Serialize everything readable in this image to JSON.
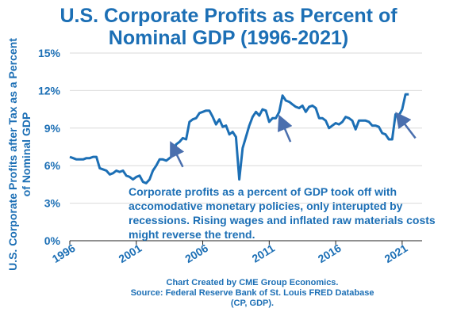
{
  "title_lines": [
    "U.S. Corporate Profits as Percent of",
    "Nominal GDP (1996-2021)"
  ],
  "ylabel_lines": [
    "U.S. Corporate Profits after Tax as a Percent",
    "of Nominal GDP"
  ],
  "annotation": "Corporate profits as a percent of GDP took off with accomodative monetary policies, only interupted by recessions.  Rising wages and inflated raw materials costs might reverse the trend.",
  "source_lines": [
    "Chart Created by CME Group Economics.",
    "Source:  Federal Reserve Bank of St. Louis FRED Database",
    "(CP, GDP)."
  ],
  "colors": {
    "line": "#1c6fb5",
    "text": "#1c6fb5",
    "arrow": "#4a6fae",
    "axis": "#222222"
  },
  "chart_data": {
    "type": "line",
    "title": "U.S. Corporate Profits as Percent of Nominal GDP (1996-2021)",
    "ylabel": "U.S. Corporate Profits after Tax as a Percent of Nominal GDP",
    "xlabel": "",
    "ylim": [
      0,
      15
    ],
    "xlim": [
      1996,
      2022.5
    ],
    "yticks": [
      0,
      3,
      6,
      9,
      12,
      15
    ],
    "ytick_labels": [
      "0%",
      "3%",
      "6%",
      "9%",
      "12%",
      "15%"
    ],
    "xticks": [
      1996,
      2001,
      2006,
      2011,
      2016,
      2021
    ],
    "xtick_labels": [
      "1996",
      "2001",
      "2006",
      "2011",
      "2016",
      "2021"
    ],
    "grid": "horizontal",
    "series": [
      {
        "values": [
          [
            1996.0,
            6.7
          ],
          [
            1996.25,
            6.6
          ],
          [
            1996.5,
            6.5
          ],
          [
            1996.75,
            6.5
          ],
          [
            1997.0,
            6.5
          ],
          [
            1997.25,
            6.6
          ],
          [
            1997.5,
            6.6
          ],
          [
            1997.75,
            6.7
          ],
          [
            1998.0,
            6.7
          ],
          [
            1998.25,
            5.8
          ],
          [
            1998.5,
            5.7
          ],
          [
            1998.75,
            5.6
          ],
          [
            1999.0,
            5.3
          ],
          [
            1999.25,
            5.4
          ],
          [
            1999.5,
            5.6
          ],
          [
            1999.75,
            5.5
          ],
          [
            2000.0,
            5.6
          ],
          [
            2000.25,
            5.2
          ],
          [
            2000.5,
            5.1
          ],
          [
            2000.75,
            4.9
          ],
          [
            2001.0,
            5.1
          ],
          [
            2001.25,
            5.2
          ],
          [
            2001.5,
            4.7
          ],
          [
            2001.75,
            4.6
          ],
          [
            2002.0,
            4.9
          ],
          [
            2002.25,
            5.6
          ],
          [
            2002.5,
            6.0
          ],
          [
            2002.75,
            6.5
          ],
          [
            2003.0,
            6.5
          ],
          [
            2003.25,
            6.4
          ],
          [
            2003.5,
            6.6
          ],
          [
            2003.75,
            6.8
          ],
          [
            2004.0,
            7.7
          ],
          [
            2004.25,
            7.9
          ],
          [
            2004.5,
            8.2
          ],
          [
            2004.75,
            8.1
          ],
          [
            2005.0,
            9.5
          ],
          [
            2005.25,
            9.7
          ],
          [
            2005.5,
            9.8
          ],
          [
            2005.75,
            10.2
          ],
          [
            2006.0,
            10.3
          ],
          [
            2006.25,
            10.4
          ],
          [
            2006.5,
            10.4
          ],
          [
            2006.75,
            9.9
          ],
          [
            2007.0,
            9.3
          ],
          [
            2007.25,
            9.7
          ],
          [
            2007.5,
            9.1
          ],
          [
            2007.75,
            9.2
          ],
          [
            2008.0,
            8.5
          ],
          [
            2008.25,
            8.7
          ],
          [
            2008.5,
            8.3
          ],
          [
            2008.75,
            4.9
          ],
          [
            2009.0,
            7.4
          ],
          [
            2009.25,
            8.3
          ],
          [
            2009.5,
            9.2
          ],
          [
            2009.75,
            9.9
          ],
          [
            2010.0,
            10.3
          ],
          [
            2010.25,
            10.0
          ],
          [
            2010.5,
            10.5
          ],
          [
            2010.75,
            10.4
          ],
          [
            2011.0,
            9.5
          ],
          [
            2011.25,
            9.8
          ],
          [
            2011.5,
            9.8
          ],
          [
            2011.75,
            10.3
          ],
          [
            2012.0,
            11.6
          ],
          [
            2012.25,
            11.2
          ],
          [
            2012.5,
            11.1
          ],
          [
            2012.75,
            10.9
          ],
          [
            2013.0,
            10.7
          ],
          [
            2013.25,
            10.6
          ],
          [
            2013.5,
            10.8
          ],
          [
            2013.75,
            10.3
          ],
          [
            2014.0,
            10.7
          ],
          [
            2014.25,
            10.8
          ],
          [
            2014.5,
            10.6
          ],
          [
            2014.75,
            9.8
          ],
          [
            2015.0,
            9.8
          ],
          [
            2015.25,
            9.6
          ],
          [
            2015.5,
            9.0
          ],
          [
            2015.75,
            9.2
          ],
          [
            2016.0,
            9.4
          ],
          [
            2016.25,
            9.3
          ],
          [
            2016.5,
            9.5
          ],
          [
            2016.75,
            9.9
          ],
          [
            2017.0,
            9.8
          ],
          [
            2017.25,
            9.6
          ],
          [
            2017.5,
            8.9
          ],
          [
            2017.75,
            9.6
          ],
          [
            2018.0,
            9.6
          ],
          [
            2018.25,
            9.6
          ],
          [
            2018.5,
            9.5
          ],
          [
            2018.75,
            9.2
          ],
          [
            2019.0,
            9.2
          ],
          [
            2019.25,
            9.1
          ],
          [
            2019.5,
            8.6
          ],
          [
            2019.75,
            8.5
          ],
          [
            2020.0,
            8.1
          ],
          [
            2020.25,
            8.1
          ],
          [
            2020.5,
            10.1
          ],
          [
            2020.75,
            10.0
          ],
          [
            2021.0,
            10.5
          ],
          [
            2021.25,
            11.7
          ],
          [
            2021.5,
            11.7
          ]
        ]
      }
    ],
    "annotations": [
      {
        "type": "arrow",
        "from": [
          2004.5,
          5.9
        ],
        "to": [
          2003.8,
          7.4
        ]
      },
      {
        "type": "arrow",
        "from": [
          2012.6,
          7.9
        ],
        "to": [
          2011.95,
          9.5
        ]
      },
      {
        "type": "arrow",
        "from": [
          2022.0,
          8.2
        ],
        "to": [
          2020.85,
          9.8
        ]
      }
    ]
  }
}
